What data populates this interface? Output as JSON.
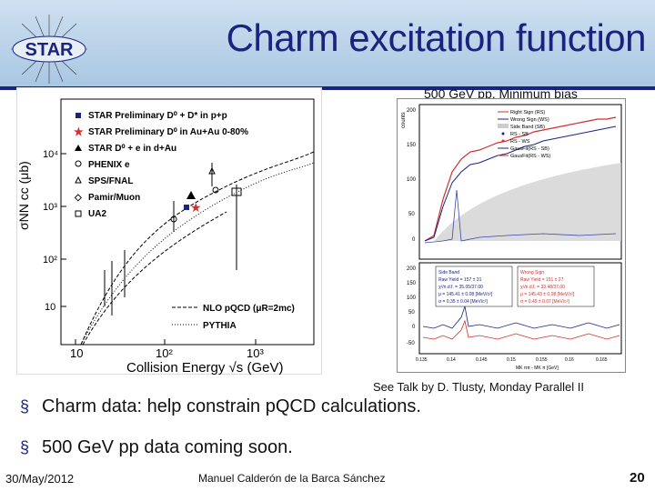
{
  "header": {
    "logo_text": "STAR",
    "title": "Charm excitation function",
    "colors": {
      "band": "#a9c7e3",
      "title": "#1a237e"
    }
  },
  "left_plot": {
    "ylabel": "σNN cc (μb)",
    "xlabel": "Collision Energy √s (GeV)",
    "xticks": [
      "10",
      "10²",
      "10³"
    ],
    "yticks": [
      "10⁴",
      "10³",
      "10²",
      "10"
    ],
    "legend": [
      "STAR Preliminary D⁰ + D* in p+p",
      "STAR Preliminary D⁰ in Au+Au 0-80%",
      "STAR D⁰ + e in d+Au",
      "PHENIX e",
      "SPS/FNAL",
      "Pamir/Muon",
      "UA2"
    ],
    "curves": [
      "NLO pQCD (μR=2mc)",
      "PYTHIA"
    ]
  },
  "right_plot": {
    "caption": "500 GeV pp, Minimum bias",
    "ylabel": "counts",
    "top_legend": [
      "Right Sign (RS)",
      "Wrong Sign (WS)",
      "Side Band (SB)",
      "RS - SB",
      "RS - WS",
      "GausFit(RS - SB)",
      "GausFit(RS - WS)"
    ],
    "top_yticks": [
      "200",
      "150",
      "100",
      "50",
      "0"
    ],
    "bottom_yticks": [
      "200",
      "150",
      "100",
      "50",
      "0",
      "-50"
    ],
    "sb_box": [
      "Side Band",
      "Raw Yield = 157 ± 31",
      "χ²/n.d.f. = 35.05/37.00",
      "μ = 145.41 ± 0.08 [MeV/c²]",
      "σ = 0.35 ± 0.04 [MeV/c²]"
    ],
    "ws_box": [
      "Wrong Sign",
      "Raw Yield = 191 ± 27",
      "χ²/n.d.f. = 33.48/37.00",
      "μ = 145.43 ± 0.08 [MeV/c²]",
      "σ = 0.49 ± 0.07 [MeV/c²]"
    ],
    "xticks": [
      "0.135",
      "0.14",
      "0.145",
      "0.15",
      "0.155",
      "0.16",
      "0.165"
    ],
    "xlabel": "MK ππ - MK π [GeV]"
  },
  "note": "See Talk by D. Tlusty, Monday Parallel II",
  "bullets": [
    "Charm data: help constrain pQCD calculations.",
    "500 GeV pp data coming soon."
  ],
  "footer": {
    "date": "30/May/2012",
    "author": "Manuel Calderón de la Barca Sánchez",
    "page": "20"
  }
}
